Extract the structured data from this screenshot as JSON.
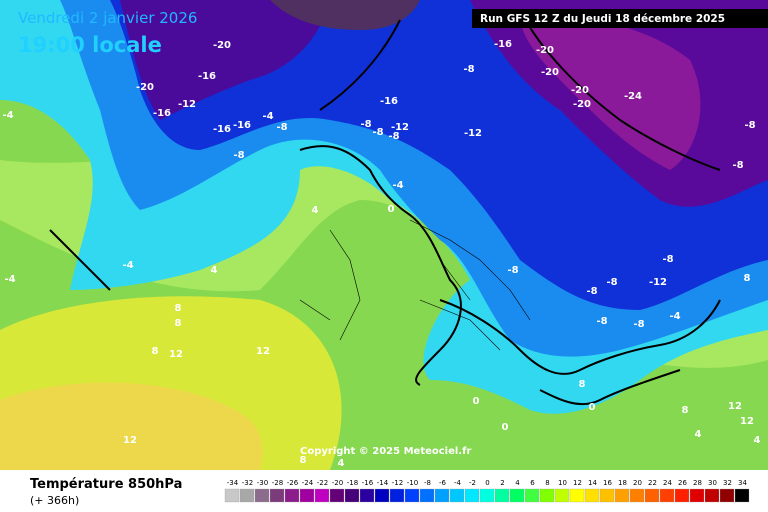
{
  "header": {
    "date": "Vendredi 2 janvier 2026",
    "time": "19:00 locale",
    "run": "Run GFS 12 Z du Jeudi 18 décembre 2025"
  },
  "map": {
    "contour_labels": [
      -20,
      -16,
      -20,
      -12,
      -16,
      -16,
      -16,
      -4,
      -8,
      -8,
      -16,
      -8,
      -8,
      -12,
      -8,
      -12,
      -16,
      -20,
      -8,
      -20,
      -20,
      -20,
      -24,
      -8,
      -8,
      -4,
      0,
      4,
      -4,
      4,
      -8,
      -8,
      -8,
      -8,
      -12,
      -8,
      -8,
      -4,
      -4,
      -4,
      8,
      8,
      8,
      8,
      12,
      12,
      12,
      8,
      4,
      0,
      0,
      0,
      8,
      8,
      12,
      12,
      4,
      4
    ],
    "copyright": "Copyright © 2025 Meteociel.fr"
  },
  "legend": {
    "title": "Température 850hPa",
    "subtitle": "(+ 366h)",
    "values": [
      -34,
      -32,
      -30,
      -28,
      -26,
      -24,
      -22,
      -20,
      -18,
      -16,
      -14,
      -12,
      -10,
      -8,
      -6,
      -4,
      -2,
      0,
      2,
      4,
      6,
      8,
      10,
      12,
      14,
      16,
      18,
      20,
      22,
      24,
      26,
      28,
      30,
      32,
      34
    ],
    "colors": [
      "#c8c8c8",
      "#a8a8a8",
      "#8c6c8c",
      "#7c3c7c",
      "#8c1c8c",
      "#a000a0",
      "#c000c0",
      "#640078",
      "#46007a",
      "#2a00a0",
      "#0000c0",
      "#0020e0",
      "#0040ff",
      "#0070ff",
      "#00a0ff",
      "#00c8ff",
      "#00e8ff",
      "#00ffe0",
      "#00ffa0",
      "#00ff60",
      "#40ff40",
      "#80ff00",
      "#c0ff00",
      "#ffff00",
      "#ffe000",
      "#ffc000",
      "#ffa000",
      "#ff8000",
      "#ff6000",
      "#ff4000",
      "#ff2000",
      "#e00000",
      "#c00000",
      "#900000",
      "#000000"
    ]
  }
}
